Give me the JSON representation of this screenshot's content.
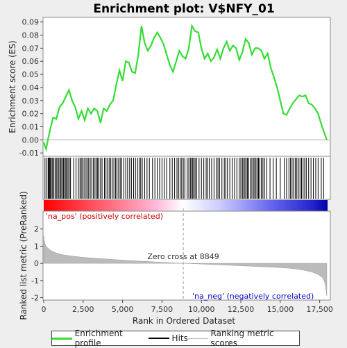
{
  "title": "Enrichment plot: V$NFY_01",
  "chart_data": [
    {
      "type": "line",
      "name": "enrichment-profile",
      "ylabel": "Enrichment score (ES)",
      "xlim": [
        0,
        18000
      ],
      "ylim": [
        -0.012,
        0.093
      ],
      "yticks": [
        -0.01,
        0.0,
        0.01,
        0.02,
        0.03,
        0.04,
        0.05,
        0.06,
        0.07,
        0.08,
        0.09
      ],
      "ytick_labels": [
        "-0.01",
        "0.00",
        "0.01",
        "0.02",
        "0.03",
        "0.04",
        "0.05",
        "0.06",
        "0.07",
        "0.08",
        "0.09"
      ],
      "color": "#33dd33",
      "x": [
        0,
        150,
        300,
        450,
        600,
        800,
        1000,
        1200,
        1400,
        1600,
        1800,
        2000,
        2200,
        2400,
        2600,
        2800,
        3000,
        3200,
        3400,
        3600,
        3800,
        4000,
        4200,
        4400,
        4600,
        4800,
        5000,
        5200,
        5400,
        5600,
        5800,
        6000,
        6200,
        6400,
        6600,
        6800,
        7000,
        7200,
        7400,
        7600,
        7800,
        8000,
        8200,
        8400,
        8600,
        8800,
        9000,
        9200,
        9400,
        9600,
        9800,
        10000,
        10200,
        10400,
        10600,
        10800,
        11000,
        11200,
        11400,
        11600,
        11800,
        12000,
        12200,
        12400,
        12600,
        12800,
        13000,
        13200,
        13400,
        13600,
        13800,
        14000,
        14200,
        14400,
        14600,
        14800,
        15000,
        15200,
        15400,
        15600,
        15800,
        16000,
        16200,
        16400,
        16600,
        16800,
        17000,
        17200,
        17400,
        17600,
        17800,
        17950
      ],
      "y": [
        -0.002,
        -0.007,
        0.002,
        0.01,
        0.017,
        0.016,
        0.025,
        0.028,
        0.033,
        0.038,
        0.03,
        0.025,
        0.016,
        0.022,
        0.015,
        0.024,
        0.02,
        0.024,
        0.022,
        0.013,
        0.024,
        0.022,
        0.027,
        0.03,
        0.042,
        0.053,
        0.045,
        0.06,
        0.059,
        0.052,
        0.051,
        0.065,
        0.087,
        0.074,
        0.068,
        0.072,
        0.078,
        0.082,
        0.078,
        0.073,
        0.065,
        0.057,
        0.052,
        0.06,
        0.068,
        0.064,
        0.062,
        0.07,
        0.087,
        0.083,
        0.082,
        0.07,
        0.062,
        0.066,
        0.06,
        0.063,
        0.069,
        0.062,
        0.07,
        0.075,
        0.068,
        0.072,
        0.07,
        0.061,
        0.067,
        0.077,
        0.074,
        0.065,
        0.07,
        0.07,
        0.068,
        0.062,
        0.066,
        0.055,
        0.048,
        0.04,
        0.03,
        0.02,
        0.019,
        0.024,
        0.028,
        0.031,
        0.034,
        0.033,
        0.034,
        0.028,
        0.027,
        0.024,
        0.02,
        0.012,
        0.005,
        0.0
      ]
    },
    {
      "type": "scatter",
      "name": "hits",
      "description_free": true,
      "x": [
        80,
        200,
        280,
        330,
        380,
        430,
        480,
        560,
        640,
        720,
        800,
        880,
        960,
        1040,
        1100,
        1180,
        1250,
        1320,
        1400,
        1460,
        1540,
        1620,
        1700,
        1900,
        2050,
        2200,
        2300,
        2380,
        2460,
        2560,
        2680,
        2760,
        2850,
        2950,
        3050,
        3150,
        3250,
        3350,
        3420,
        3500,
        3600,
        3700,
        3850,
        3950,
        4050,
        4150,
        4250,
        4350,
        4450,
        4560,
        4650,
        4750,
        4850,
        4950,
        5080,
        5200,
        5320,
        5450,
        5560,
        5700,
        5820,
        5950,
        6050,
        6150,
        6250,
        6400,
        6550,
        6700,
        6900,
        7050,
        7200,
        7350,
        7500,
        7650,
        7800,
        8000,
        8150,
        8300,
        8450,
        8550,
        8650,
        8750,
        8850,
        8950,
        9100,
        9200,
        9300,
        9380,
        9450,
        9520,
        9600,
        9700,
        9850,
        10000,
        10150,
        10300,
        10400,
        10500,
        10650,
        10800,
        10950,
        11050,
        11150,
        11300,
        11450,
        11550,
        11650,
        11800,
        11950,
        12100,
        12250,
        12400,
        12500,
        12600,
        12680,
        12760,
        12840,
        12920,
        13000,
        13100,
        13200,
        13300,
        13380,
        13460,
        13540,
        13620,
        13700,
        13800,
        13900,
        14000,
        14150,
        14350,
        14550,
        14750,
        15000,
        15250,
        15400,
        15550,
        15650,
        15750,
        15850,
        15950,
        16050,
        16150,
        16250,
        16350,
        16450,
        16550,
        16650,
        16800,
        16950,
        17100,
        17250,
        17400,
        17600,
        17750
      ]
    },
    {
      "type": "area",
      "name": "ranking-metric",
      "xlabel": "Rank in Ordered Dataset",
      "ylabel": "Ranked list metric (PreRanked)",
      "xlim": [
        0,
        18000
      ],
      "ylim": [
        -2.1,
        3.0
      ],
      "yticks": [
        -2,
        -1,
        0,
        1,
        2
      ],
      "ytick_labels": [
        "-2",
        "-1",
        "0",
        "1",
        "2"
      ],
      "xticks": [
        0,
        2500,
        5000,
        7500,
        10000,
        12500,
        15000,
        17500
      ],
      "xtick_labels": [
        "0",
        "2,500",
        "5,000",
        "7,500",
        "10,000",
        "12,500",
        "15,000",
        "17,500"
      ],
      "color": "#bbbbbb",
      "x": [
        0,
        30,
        80,
        150,
        300,
        500,
        800,
        1200,
        1800,
        2500,
        3500,
        4500,
        5500,
        6500,
        7500,
        8849,
        10000,
        11000,
        12000,
        13000,
        14000,
        15000,
        15500,
        16000,
        16500,
        17000,
        17400,
        17700,
        17850,
        17950
      ],
      "y": [
        1.6,
        1.35,
        1.15,
        1.0,
        0.85,
        0.72,
        0.6,
        0.5,
        0.42,
        0.35,
        0.28,
        0.22,
        0.16,
        0.11,
        0.06,
        0.0,
        -0.04,
        -0.08,
        -0.12,
        -0.16,
        -0.2,
        -0.25,
        -0.28,
        -0.33,
        -0.4,
        -0.5,
        -0.65,
        -0.85,
        -1.2,
        -1.9
      ],
      "zero_cross_label": "Zero cross at 8849",
      "zero_cross": 8849,
      "pos_label": "'na_pos' (positively correlated)",
      "neg_label": "'na_neg' (negatively correlated)"
    }
  ],
  "legend": {
    "profile": "Enrichment profile",
    "hits": "Hits",
    "metric": "Ranking metric scores"
  }
}
